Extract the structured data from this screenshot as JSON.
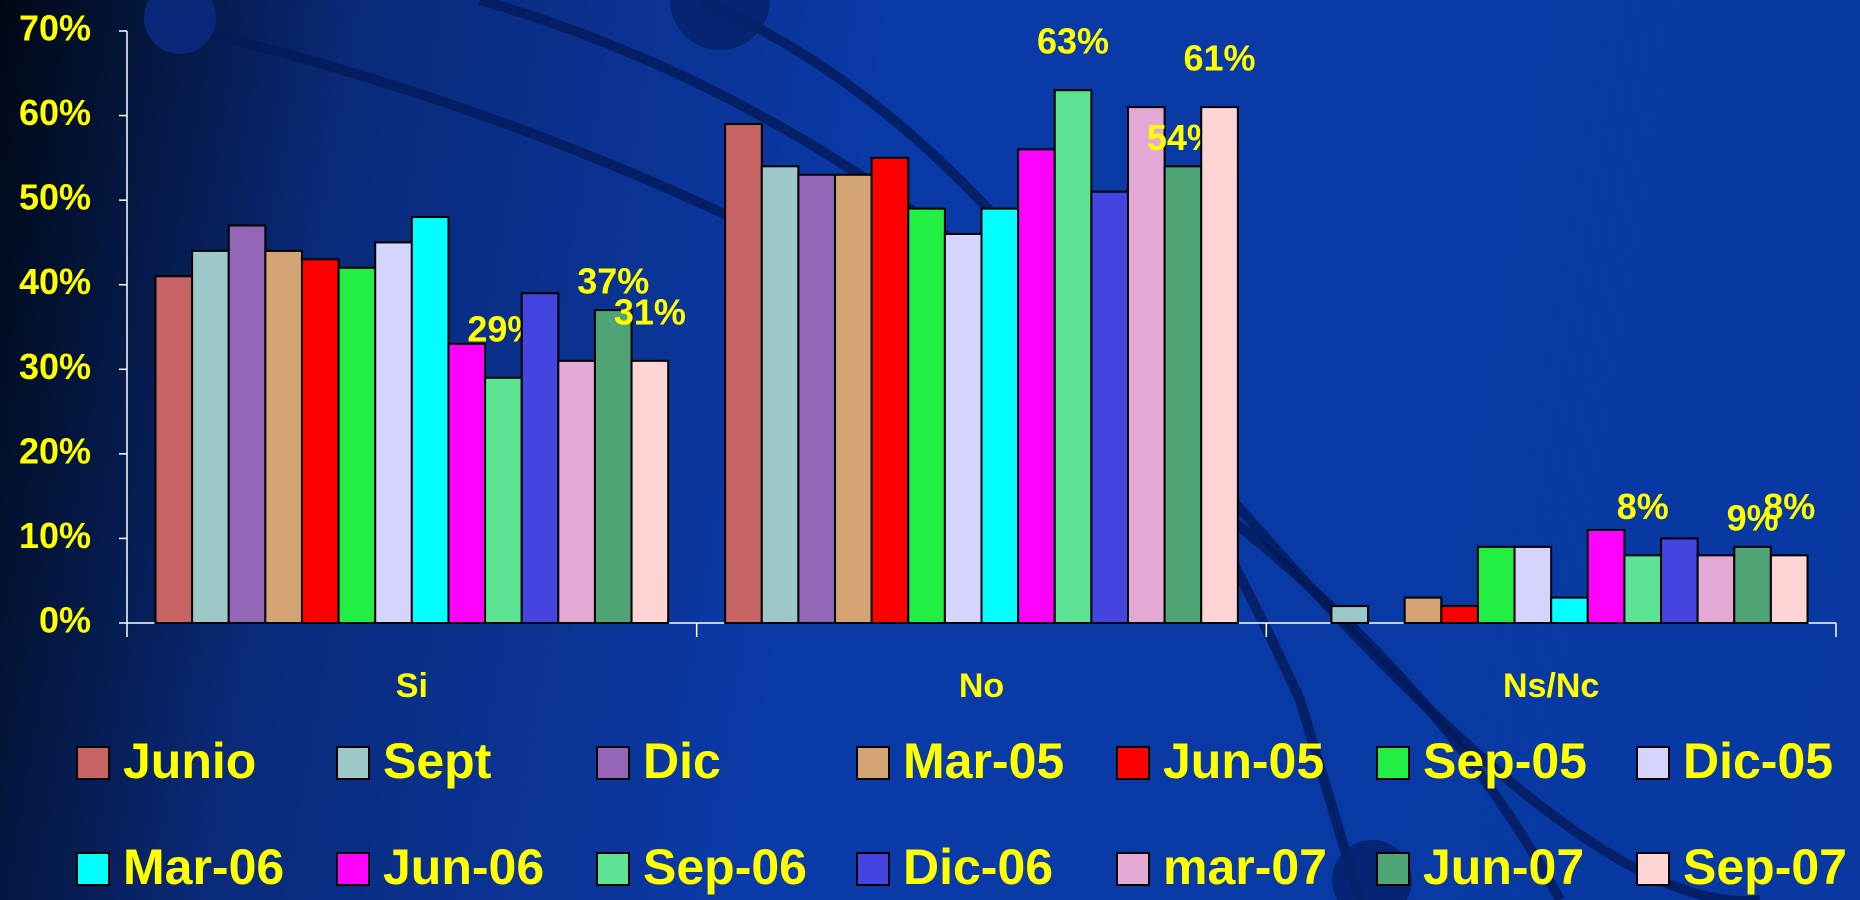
{
  "chart_data": {
    "type": "bar",
    "categories": [
      "Si",
      "No",
      "Ns/Nc"
    ],
    "ylim": [
      0,
      70
    ],
    "yticks": [
      {
        "value": 0,
        "label": "0%"
      },
      {
        "value": 10,
        "label": "10%"
      },
      {
        "value": 20,
        "label": "20%"
      },
      {
        "value": 30,
        "label": "30%"
      },
      {
        "value": 40,
        "label": "40%"
      },
      {
        "value": 50,
        "label": "50%"
      },
      {
        "value": 60,
        "label": "60%"
      },
      {
        "value": 70,
        "label": "70%"
      }
    ],
    "series": [
      {
        "name": "Junio",
        "color": "#c86464",
        "values": [
          41,
          59,
          0
        ]
      },
      {
        "name": "Sept",
        "color": "#9cc8c8",
        "values": [
          44,
          54,
          2
        ]
      },
      {
        "name": "Dic",
        "color": "#9466b8",
        "values": [
          47,
          53,
          0
        ]
      },
      {
        "name": "Mar-05",
        "color": "#d4a474",
        "values": [
          44,
          53,
          3
        ]
      },
      {
        "name": "Jun-05",
        "color": "#ff0000",
        "values": [
          43,
          55,
          2
        ]
      },
      {
        "name": "Sep-05",
        "color": "#22ee44",
        "values": [
          42,
          49,
          9
        ]
      },
      {
        "name": "Dic-05",
        "color": "#d4d4ff",
        "values": [
          45,
          46,
          9
        ]
      },
      {
        "name": "Mar-06",
        "color": "#00ffff",
        "values": [
          48,
          49,
          3
        ]
      },
      {
        "name": "Jun-06",
        "color": "#ff00ff",
        "values": [
          33,
          56,
          11
        ]
      },
      {
        "name": "Sep-06",
        "color": "#5ce494",
        "values": [
          29,
          63,
          8
        ],
        "value_labels": [
          "29%",
          "63%",
          "8%"
        ]
      },
      {
        "name": "Dic-06",
        "color": "#4444e0",
        "values": [
          39,
          51,
          10
        ]
      },
      {
        "name": "mar-07",
        "color": "#e4a8d4",
        "values": [
          31,
          61,
          8
        ]
      },
      {
        "name": "Jun-07",
        "color": "#4ea474",
        "values": [
          37,
          54,
          9
        ],
        "value_labels": [
          "37%",
          "54%",
          "9%"
        ]
      },
      {
        "name": "Sep-07",
        "color": "#ffd4d4",
        "values": [
          31,
          61,
          8
        ],
        "value_labels": [
          "31%",
          "61%",
          "8%"
        ]
      }
    ]
  }
}
